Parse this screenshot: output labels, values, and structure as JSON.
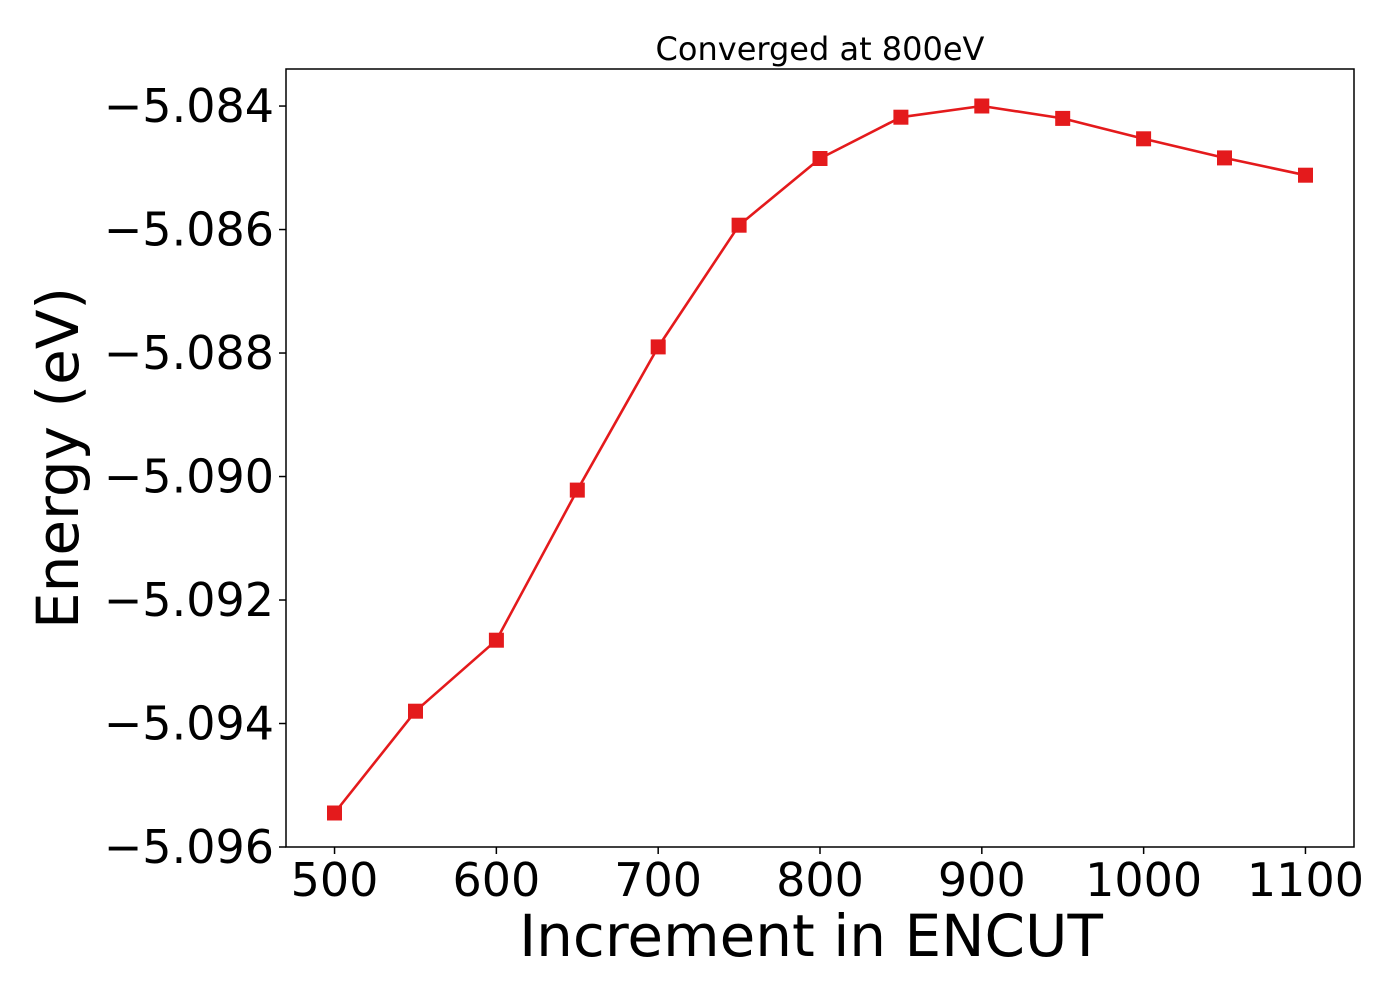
{
  "chart_data": {
    "type": "line",
    "title": "Converged at 800eV",
    "xlabel": "Increment in ENCUT",
    "ylabel": "Energy (eV)",
    "xlim": [
      470,
      1130
    ],
    "ylim": [
      -5.096,
      -5.0834
    ],
    "x_ticks": [
      500,
      600,
      700,
      800,
      900,
      1000,
      1100
    ],
    "x_tick_labels": [
      "500",
      "600",
      "700",
      "800",
      "900",
      "1000",
      "1100"
    ],
    "y_ticks": [
      -5.096,
      -5.094,
      -5.092,
      -5.09,
      -5.088,
      -5.086,
      -5.084
    ],
    "y_tick_labels": [
      "−5.096",
      "−5.094",
      "−5.092",
      "−5.090",
      "−5.088",
      "−5.086",
      "−5.084"
    ],
    "grid": false,
    "series": [
      {
        "color": "#e41a1c",
        "marker": "square",
        "x": [
          500,
          550,
          600,
          650,
          700,
          750,
          800,
          850,
          900,
          950,
          1000,
          1050,
          1100
        ],
        "y": [
          -5.09545,
          -5.0938,
          -5.09265,
          -5.09022,
          -5.0879,
          -5.08593,
          -5.08485,
          -5.08418,
          -5.084,
          -5.0842,
          -5.08453,
          -5.08484,
          -5.08512
        ]
      }
    ]
  }
}
